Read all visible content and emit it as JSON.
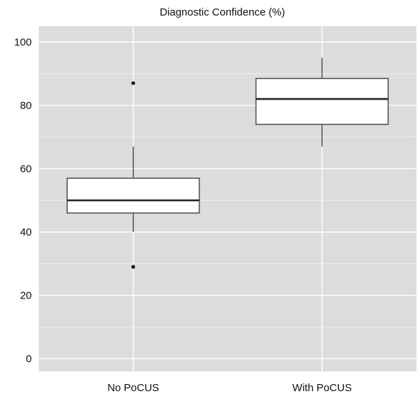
{
  "chart_data": {
    "type": "box",
    "title": "Diagnostic Confidence (%)",
    "xlabel": "",
    "ylabel": "",
    "ylim": [
      -4,
      105
    ],
    "yticks": [
      0,
      20,
      40,
      60,
      80,
      100
    ],
    "grid": true,
    "categories": [
      "No PoCUS",
      "With PoCUS"
    ],
    "boxes": [
      {
        "category": "No PoCUS",
        "whisker_low": 40,
        "q1": 46,
        "median": 50,
        "q3": 57,
        "whisker_high": 67,
        "outliers": [
          87,
          29
        ]
      },
      {
        "category": "With PoCUS",
        "whisker_low": 67,
        "q1": 74,
        "median": 82,
        "q3": 88.5,
        "whisker_high": 95,
        "outliers": []
      }
    ]
  },
  "colors": {
    "panel_background": "#dcdcdc",
    "grid": "#ffffff",
    "box_fill": "#ffffff",
    "box_stroke": "#555555",
    "median": "#222222"
  }
}
